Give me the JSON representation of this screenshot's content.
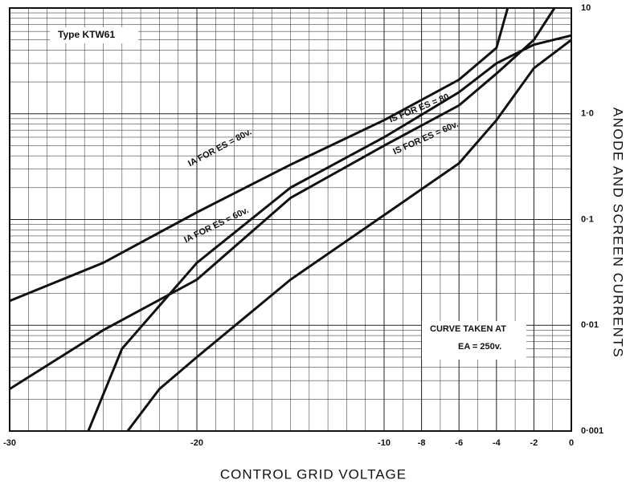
{
  "chart_data": {
    "type": "line",
    "x_label": "CONTROL GRID VOLTAGE",
    "y_label": "ANODE AND SCREEN CURRENTS",
    "annotations": [
      "Type KTW61",
      "CURVE TAKEN AT",
      "EA = 250v."
    ],
    "xlim": [
      -30,
      0
    ],
    "xticks": [
      -30,
      -20,
      -10,
      -8,
      -6,
      -4,
      -2,
      0
    ],
    "ylim": [
      0.001,
      10
    ],
    "yticks": [
      {
        "value": 0.001,
        "label": "0·001"
      },
      {
        "value": 0.01,
        "label": "0·01"
      },
      {
        "value": 0.1,
        "label": "0·1"
      },
      {
        "value": 1,
        "label": "1·0"
      },
      {
        "value": 10,
        "label": "10"
      }
    ],
    "log_y": true,
    "grid": true,
    "series": [
      {
        "name": "IA FOR ES = 80v.",
        "color": "#111111",
        "x": [
          -30,
          -25,
          -20,
          -15,
          -10,
          -6,
          -4,
          -3.4
        ],
        "values": [
          0.017,
          0.039,
          0.117,
          0.33,
          0.87,
          2.1,
          4.2,
          10
        ]
      },
      {
        "name": "IA FOR ES = 60v.",
        "color": "#111111",
        "x": [
          -30,
          -25,
          -20,
          -15,
          -10,
          -6,
          -4,
          -2,
          -0.9
        ],
        "values": [
          0.0025,
          0.009,
          0.027,
          0.16,
          0.5,
          1.2,
          2.4,
          5,
          10
        ]
      },
      {
        "name": "IS FOR ES = 80",
        "color": "#111111",
        "x": [
          -25.8,
          -24,
          -20,
          -15,
          -10,
          -6,
          -4,
          -2,
          0
        ],
        "values": [
          0.001,
          0.006,
          0.039,
          0.2,
          0.6,
          1.6,
          3,
          4.5,
          5.5
        ]
      },
      {
        "name": "IS FOR ES = 60v.",
        "color": "#111111",
        "x": [
          -23.7,
          -22,
          -20,
          -15,
          -10,
          -6,
          -4,
          -2,
          0
        ],
        "values": [
          0.001,
          0.0025,
          0.005,
          0.027,
          0.11,
          0.34,
          0.87,
          2.7,
          5
        ]
      }
    ]
  }
}
